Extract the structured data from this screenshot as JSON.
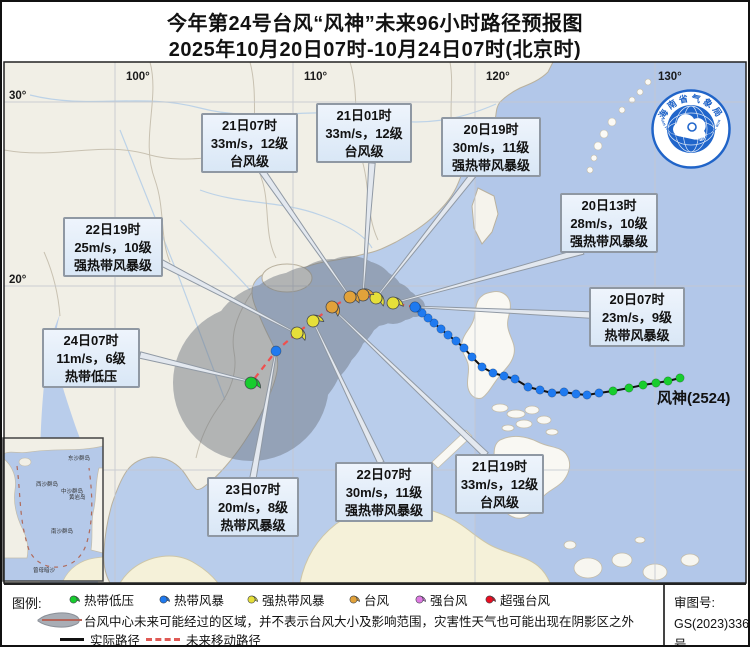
{
  "title": {
    "line1": "今年第24号台风“风神”未来96小时路径预报图",
    "line2": "2025年10月20日07时-10月24日07时(北京时)"
  },
  "map": {
    "lon_labels": [
      "100°",
      "110°",
      "120°",
      "130°"
    ],
    "lat_labels": [
      "30°",
      "20°"
    ],
    "storm_label": "风神(2524)"
  },
  "callouts": [
    {
      "time": "21日07时",
      "wind": "33m/s，12级",
      "category": "台风级"
    },
    {
      "time": "21日01时",
      "wind": "33m/s，12级",
      "category": "台风级"
    },
    {
      "time": "20日19时",
      "wind": "30m/s，11级",
      "category": "强热带风暴级"
    },
    {
      "time": "20日13时",
      "wind": "28m/s，10级",
      "category": "强热带风暴级"
    },
    {
      "time": "20日07时",
      "wind": "23m/s，9级",
      "category": "热带风暴级"
    },
    {
      "time": "22日19时",
      "wind": "25m/s，10级",
      "category": "强热带风暴级"
    },
    {
      "time": "24日07时",
      "wind": "11m/s，6级",
      "category": "热带低压"
    },
    {
      "time": "23日07时",
      "wind": "20m/s，8级",
      "category": "热带风暴级"
    },
    {
      "time": "22日07时",
      "wind": "30m/s，11级",
      "category": "强热带风暴级"
    },
    {
      "time": "21日19时",
      "wind": "33m/s，12级",
      "category": "台风级"
    }
  ],
  "legend": {
    "title": "图例:",
    "categories": [
      {
        "key": "td",
        "name": "热带低压",
        "color": "#17cd2e"
      },
      {
        "key": "ts",
        "name": "热带风暴",
        "color": "#1f7af0"
      },
      {
        "key": "sts",
        "name": "强热带风暴",
        "color": "#e6df39"
      },
      {
        "key": "ty",
        "name": "台风",
        "color": "#e2a23a"
      },
      {
        "key": "sty",
        "name": "强台风",
        "color": "#df7ae2"
      },
      {
        "key": "sup",
        "name": "超强台风",
        "color": "#ea0d20"
      }
    ],
    "cone_note": "台风中心未来可能经过的区域，并不表示台风大小及影响范围，灾害性天气也可能出现在阴影区之外",
    "actual_label": "实际路径",
    "forecast_label": "未来移动路径"
  },
  "review": {
    "label": "审图号:",
    "number": "GS(2023)336号"
  },
  "logo": {
    "cn": "海南省气象局",
    "en": "HAINAN PROVINCIAL METEOROLOGICAL BUREAU"
  },
  "inset": {
    "labels": [
      "东沙群岛",
      "西沙群岛",
      "中沙群岛",
      "黄岩岛",
      "南沙群岛",
      "曾母暗沙"
    ]
  }
}
